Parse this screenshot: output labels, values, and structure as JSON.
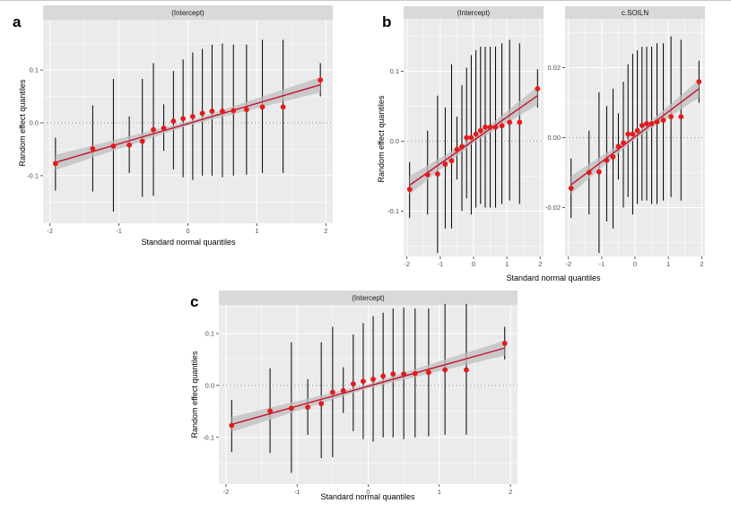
{
  "figure_labels": {
    "a": "a",
    "b": "b",
    "c": "c"
  },
  "styles": {
    "panel_background": "#ebebeb",
    "strip_background": "#d9d9d9",
    "gridline": "#ffffff",
    "point_color": "#e31a1c",
    "line_color": "#c8102e",
    "ribbon_color": "#bdbdbd",
    "errorbar_color": "#000000",
    "zero_line_color": "#9a9a9a"
  },
  "chart_data": [
    {
      "id": "a",
      "type": "scatter",
      "facets": [
        {
          "strip": "(Intercept)",
          "xlim": [
            -2.1,
            2.1
          ],
          "ylim": [
            -0.19,
            0.195
          ],
          "xticks": [
            -2,
            -1,
            0,
            1,
            2
          ],
          "yticks": [
            -0.1,
            0.0,
            0.1
          ],
          "ytick_labels": [
            "-0.1",
            "0.0",
            "0.1"
          ],
          "zero_line": 0,
          "fit": {
            "x": [
              -1.92,
              1.92
            ],
            "y": [
              -0.075,
              0.072
            ],
            "band": 0.009
          },
          "points": [
            {
              "x": -1.92,
              "y": -0.077,
              "lo": -0.128,
              "hi": -0.028
            },
            {
              "x": -1.38,
              "y": -0.049,
              "lo": -0.13,
              "hi": 0.033
            },
            {
              "x": -1.08,
              "y": -0.044,
              "lo": -0.168,
              "hi": 0.083
            },
            {
              "x": -0.85,
              "y": -0.042,
              "lo": -0.095,
              "hi": 0.012
            },
            {
              "x": -0.66,
              "y": -0.035,
              "lo": -0.14,
              "hi": 0.083
            },
            {
              "x": -0.5,
              "y": -0.013,
              "lo": -0.138,
              "hi": 0.113
            },
            {
              "x": -0.35,
              "y": -0.01,
              "lo": -0.053,
              "hi": 0.035
            },
            {
              "x": -0.21,
              "y": 0.003,
              "lo": -0.088,
              "hi": 0.098
            },
            {
              "x": -0.07,
              "y": 0.008,
              "lo": -0.103,
              "hi": 0.12
            },
            {
              "x": 0.07,
              "y": 0.012,
              "lo": -0.108,
              "hi": 0.133
            },
            {
              "x": 0.21,
              "y": 0.018,
              "lo": -0.1,
              "hi": 0.14
            },
            {
              "x": 0.35,
              "y": 0.022,
              "lo": -0.1,
              "hi": 0.148
            },
            {
              "x": 0.5,
              "y": 0.022,
              "lo": -0.103,
              "hi": 0.15
            },
            {
              "x": 0.66,
              "y": 0.023,
              "lo": -0.1,
              "hi": 0.148
            },
            {
              "x": 0.85,
              "y": 0.025,
              "lo": -0.098,
              "hi": 0.148
            },
            {
              "x": 1.08,
              "y": 0.03,
              "lo": -0.095,
              "hi": 0.157
            },
            {
              "x": 1.38,
              "y": 0.03,
              "lo": -0.095,
              "hi": 0.157
            },
            {
              "x": 1.92,
              "y": 0.081,
              "lo": 0.05,
              "hi": 0.113
            }
          ]
        }
      ],
      "xlabel": "Standard normal quantiles",
      "ylabel": "Random effect quantiles"
    },
    {
      "id": "b",
      "type": "scatter",
      "facets": [
        {
          "strip": "(Intercept)",
          "xlim": [
            -2.1,
            2.1
          ],
          "ylim": [
            -0.165,
            0.175
          ],
          "xticks": [
            -2,
            -1,
            0,
            1,
            2
          ],
          "yticks": [
            -0.1,
            0.0,
            0.1
          ],
          "ytick_labels": [
            "-0.1",
            "0.0",
            "0.1"
          ],
          "zero_line": 0,
          "fit": {
            "x": [
              -1.92,
              1.92
            ],
            "y": [
              -0.063,
              0.065
            ],
            "band": 0.008
          },
          "points": [
            {
              "x": -1.92,
              "y": -0.069,
              "lo": -0.11,
              "hi": -0.03
            },
            {
              "x": -1.38,
              "y": -0.048,
              "lo": -0.105,
              "hi": 0.015
            },
            {
              "x": -1.08,
              "y": -0.047,
              "lo": -0.16,
              "hi": 0.065
            },
            {
              "x": -0.85,
              "y": -0.033,
              "lo": -0.125,
              "hi": 0.048
            },
            {
              "x": -0.66,
              "y": -0.028,
              "lo": -0.125,
              "hi": 0.11
            },
            {
              "x": -0.5,
              "y": -0.012,
              "lo": -0.055,
              "hi": 0.035
            },
            {
              "x": -0.35,
              "y": -0.008,
              "lo": -0.1,
              "hi": 0.08
            },
            {
              "x": -0.21,
              "y": 0.005,
              "lo": -0.082,
              "hi": 0.105
            },
            {
              "x": -0.07,
              "y": 0.005,
              "lo": -0.105,
              "hi": 0.123
            },
            {
              "x": 0.07,
              "y": 0.01,
              "lo": -0.095,
              "hi": 0.13
            },
            {
              "x": 0.21,
              "y": 0.015,
              "lo": -0.09,
              "hi": 0.135
            },
            {
              "x": 0.35,
              "y": 0.02,
              "lo": -0.095,
              "hi": 0.135
            },
            {
              "x": 0.5,
              "y": 0.02,
              "lo": -0.095,
              "hi": 0.135
            },
            {
              "x": 0.66,
              "y": 0.02,
              "lo": -0.095,
              "hi": 0.135
            },
            {
              "x": 0.85,
              "y": 0.022,
              "lo": -0.09,
              "hi": 0.14
            },
            {
              "x": 1.08,
              "y": 0.027,
              "lo": -0.085,
              "hi": 0.145
            },
            {
              "x": 1.38,
              "y": 0.027,
              "lo": -0.09,
              "hi": 0.14
            },
            {
              "x": 1.92,
              "y": 0.075,
              "lo": 0.048,
              "hi": 0.103
            }
          ]
        },
        {
          "strip": "c.SOILN",
          "xlim": [
            -2.1,
            2.1
          ],
          "ylim": [
            -0.034,
            0.034
          ],
          "xticks": [
            -2,
            -1,
            0,
            1,
            2
          ],
          "yticks": [
            -0.02,
            0.0,
            0.02
          ],
          "ytick_labels": [
            "-0.02",
            "0.00",
            "0.02"
          ],
          "zero_line": 0,
          "fit": {
            "x": [
              -1.92,
              1.92
            ],
            "y": [
              -0.0135,
              0.014
            ],
            "band": 0.0016
          },
          "points": [
            {
              "x": -1.92,
              "y": -0.0145,
              "lo": -0.023,
              "hi": -0.006
            },
            {
              "x": -1.38,
              "y": -0.01,
              "lo": -0.022,
              "hi": 0.002
            },
            {
              "x": -1.08,
              "y": -0.0098,
              "lo": -0.033,
              "hi": 0.013
            },
            {
              "x": -0.85,
              "y": -0.0065,
              "lo": -0.024,
              "hi": 0.009
            },
            {
              "x": -0.66,
              "y": -0.0055,
              "lo": -0.026,
              "hi": 0.014
            },
            {
              "x": -0.5,
              "y": -0.0025,
              "lo": -0.012,
              "hi": 0.007
            },
            {
              "x": -0.35,
              "y": -0.0015,
              "lo": -0.02,
              "hi": 0.016
            },
            {
              "x": -0.21,
              "y": 0.001,
              "lo": -0.017,
              "hi": 0.021
            },
            {
              "x": -0.07,
              "y": 0.001,
              "lo": -0.022,
              "hi": 0.024
            },
            {
              "x": 0.07,
              "y": 0.002,
              "lo": -0.019,
              "hi": 0.025
            },
            {
              "x": 0.21,
              "y": 0.0035,
              "lo": -0.018,
              "hi": 0.026
            },
            {
              "x": 0.35,
              "y": 0.004,
              "lo": -0.018,
              "hi": 0.026
            },
            {
              "x": 0.5,
              "y": 0.004,
              "lo": -0.019,
              "hi": 0.026
            },
            {
              "x": 0.66,
              "y": 0.0045,
              "lo": -0.019,
              "hi": 0.027
            },
            {
              "x": 0.85,
              "y": 0.005,
              "lo": -0.018,
              "hi": 0.027
            },
            {
              "x": 1.08,
              "y": 0.006,
              "lo": -0.017,
              "hi": 0.029
            },
            {
              "x": 1.38,
              "y": 0.006,
              "lo": -0.018,
              "hi": 0.028
            },
            {
              "x": 1.92,
              "y": 0.016,
              "lo": 0.01,
              "hi": 0.022
            }
          ]
        }
      ],
      "xlabel": "Standard normal quantiles",
      "ylabel": "Random effect quantiles"
    },
    {
      "id": "c",
      "type": "scatter",
      "facets": [
        {
          "strip": "(Intercept)",
          "xlim": [
            -2.1,
            2.1
          ],
          "ylim": [
            -0.19,
            0.155
          ],
          "xticks": [
            -2,
            -1,
            0,
            1,
            2
          ],
          "yticks": [
            -0.1,
            0.0,
            0.1
          ],
          "ytick_labels": [
            "-0.1",
            "0.0",
            "0.1"
          ],
          "zero_line": 0,
          "fit": {
            "x": [
              -1.92,
              1.92
            ],
            "y": [
              -0.075,
              0.072
            ],
            "band": 0.009
          },
          "points": [
            {
              "x": -1.92,
              "y": -0.077,
              "lo": -0.128,
              "hi": -0.028
            },
            {
              "x": -1.38,
              "y": -0.049,
              "lo": -0.13,
              "hi": 0.033
            },
            {
              "x": -1.08,
              "y": -0.044,
              "lo": -0.168,
              "hi": 0.083
            },
            {
              "x": -0.85,
              "y": -0.042,
              "lo": -0.095,
              "hi": 0.012
            },
            {
              "x": -0.66,
              "y": -0.035,
              "lo": -0.14,
              "hi": 0.083
            },
            {
              "x": -0.5,
              "y": -0.013,
              "lo": -0.138,
              "hi": 0.113
            },
            {
              "x": -0.35,
              "y": -0.01,
              "lo": -0.053,
              "hi": 0.035
            },
            {
              "x": -0.21,
              "y": 0.003,
              "lo": -0.088,
              "hi": 0.098
            },
            {
              "x": -0.07,
              "y": 0.008,
              "lo": -0.103,
              "hi": 0.12
            },
            {
              "x": 0.07,
              "y": 0.012,
              "lo": -0.108,
              "hi": 0.133
            },
            {
              "x": 0.21,
              "y": 0.018,
              "lo": -0.1,
              "hi": 0.14
            },
            {
              "x": 0.35,
              "y": 0.022,
              "lo": -0.1,
              "hi": 0.148
            },
            {
              "x": 0.5,
              "y": 0.022,
              "lo": -0.103,
              "hi": 0.15
            },
            {
              "x": 0.66,
              "y": 0.023,
              "lo": -0.1,
              "hi": 0.148
            },
            {
              "x": 0.85,
              "y": 0.025,
              "lo": -0.098,
              "hi": 0.148
            },
            {
              "x": 1.08,
              "y": 0.03,
              "lo": -0.095,
              "hi": 0.157
            },
            {
              "x": 1.38,
              "y": 0.03,
              "lo": -0.095,
              "hi": 0.157
            },
            {
              "x": 1.92,
              "y": 0.081,
              "lo": 0.05,
              "hi": 0.113
            }
          ]
        }
      ],
      "xlabel": "Standard normal quantiles",
      "ylabel": "Random effect quantiles"
    }
  ]
}
